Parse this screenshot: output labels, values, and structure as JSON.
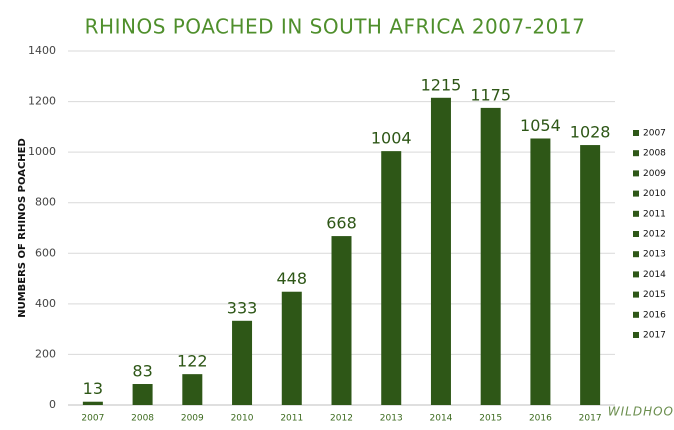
{
  "chart_data": {
    "type": "bar",
    "title": "RHINOS POACHED IN SOUTH AFRICA 2007-2017",
    "y_label": "NUMBERS OF RHINOS POACHED",
    "categories": [
      "2007",
      "2008",
      "2009",
      "2010",
      "2011",
      "2012",
      "2013",
      "2014",
      "2015",
      "2016",
      "2017"
    ],
    "values": [
      13,
      83,
      122,
      333,
      448,
      668,
      1004,
      1215,
      1175,
      1054,
      1028
    ],
    "color": "#2e5717",
    "ylim": [
      0,
      1400
    ],
    "yticks": [
      0,
      200,
      400,
      600,
      800,
      1000,
      1200,
      1400
    ],
    "grid": true,
    "legend": "right",
    "logo": "WILDHOOD"
  }
}
